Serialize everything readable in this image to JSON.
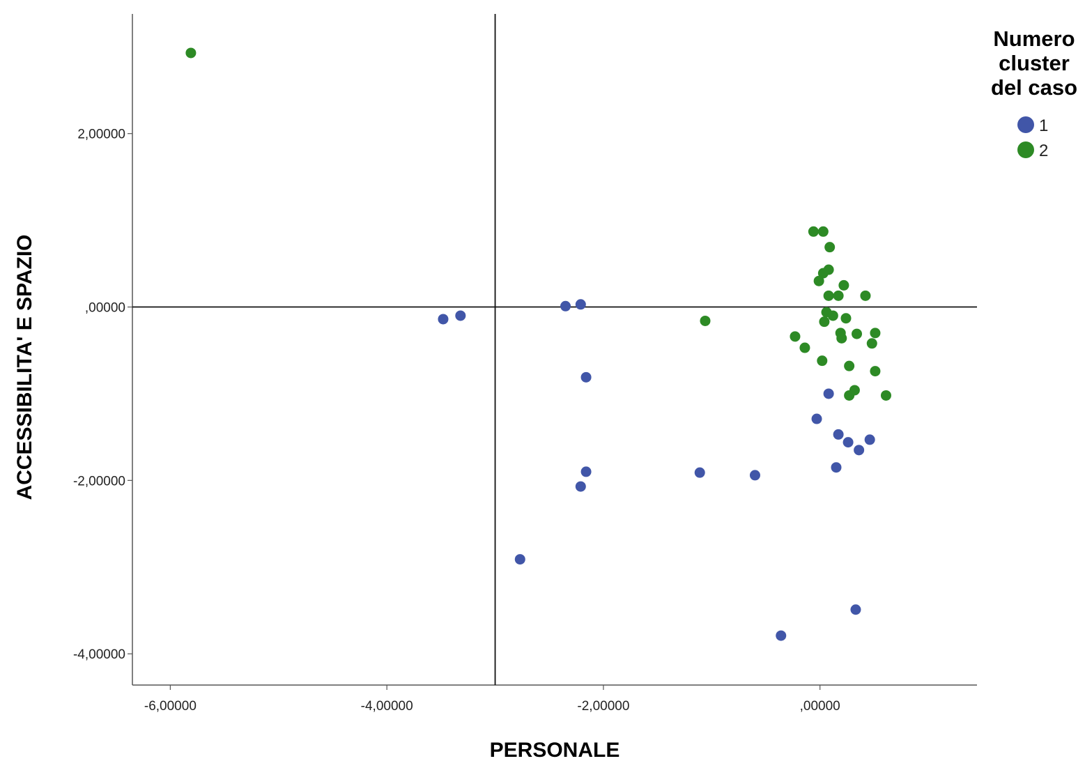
{
  "chart_data": {
    "type": "scatter",
    "title": "",
    "xlabel": "PERSONALE",
    "ylabel": "ACCESSIBILITA' E SPAZIO",
    "xlim": [
      -6.35,
      1.45
    ],
    "ylim": [
      -4.36,
      3.38
    ],
    "x_ticks": [
      {
        "value": -6,
        "label": "-6,00000"
      },
      {
        "value": -4,
        "label": "-4,00000"
      },
      {
        "value": -2,
        "label": "-2,00000"
      },
      {
        "value": 0,
        "label": ",00000"
      }
    ],
    "y_ticks": [
      {
        "value": 2,
        "label": "2,00000"
      },
      {
        "value": 0,
        "label": ",00000"
      },
      {
        "value": -2,
        "label": "-2,00000"
      },
      {
        "value": -4,
        "label": "-4,00000"
      }
    ],
    "reference_lines": {
      "x": -3.0,
      "y": 0.0
    },
    "grid": false,
    "legend": {
      "title": "Numero cluster del caso",
      "title_lines": [
        "Numero",
        "cluster",
        "del caso"
      ],
      "position": "right"
    },
    "series": [
      {
        "name": "1",
        "color": "#4156a8",
        "points": [
          [
            -3.48,
            -0.14
          ],
          [
            -3.32,
            -0.1
          ],
          [
            -2.35,
            0.01
          ],
          [
            -2.21,
            0.03
          ],
          [
            -2.16,
            -0.81
          ],
          [
            -2.16,
            -1.9
          ],
          [
            -2.21,
            -2.07
          ],
          [
            -2.77,
            -2.91
          ],
          [
            -1.11,
            -1.91
          ],
          [
            -0.6,
            -1.94
          ],
          [
            -0.36,
            -3.79
          ],
          [
            0.08,
            -1.0
          ],
          [
            -0.03,
            -1.29
          ],
          [
            0.17,
            -1.47
          ],
          [
            0.26,
            -1.56
          ],
          [
            0.15,
            -1.85
          ],
          [
            0.36,
            -1.65
          ],
          [
            0.46,
            -1.53
          ],
          [
            0.33,
            -3.49
          ]
        ]
      },
      {
        "name": "2",
        "color": "#2d8a25",
        "points": [
          [
            -5.81,
            2.93
          ],
          [
            -1.06,
            -0.16
          ],
          [
            -0.06,
            0.87
          ],
          [
            0.03,
            0.87
          ],
          [
            0.09,
            0.69
          ],
          [
            0.03,
            0.39
          ],
          [
            0.08,
            0.43
          ],
          [
            -0.01,
            0.3
          ],
          [
            0.22,
            0.25
          ],
          [
            0.08,
            0.13
          ],
          [
            0.17,
            0.13
          ],
          [
            0.42,
            0.13
          ],
          [
            0.06,
            -0.06
          ],
          [
            0.12,
            -0.1
          ],
          [
            0.24,
            -0.13
          ],
          [
            0.04,
            -0.17
          ],
          [
            0.19,
            -0.3
          ],
          [
            0.2,
            -0.36
          ],
          [
            0.34,
            -0.31
          ],
          [
            0.51,
            -0.3
          ],
          [
            0.48,
            -0.42
          ],
          [
            -0.23,
            -0.34
          ],
          [
            -0.14,
            -0.47
          ],
          [
            0.02,
            -0.62
          ],
          [
            0.27,
            -0.68
          ],
          [
            0.51,
            -0.74
          ],
          [
            0.32,
            -0.96
          ],
          [
            0.27,
            -1.02
          ],
          [
            0.61,
            -1.02
          ]
        ]
      }
    ]
  }
}
